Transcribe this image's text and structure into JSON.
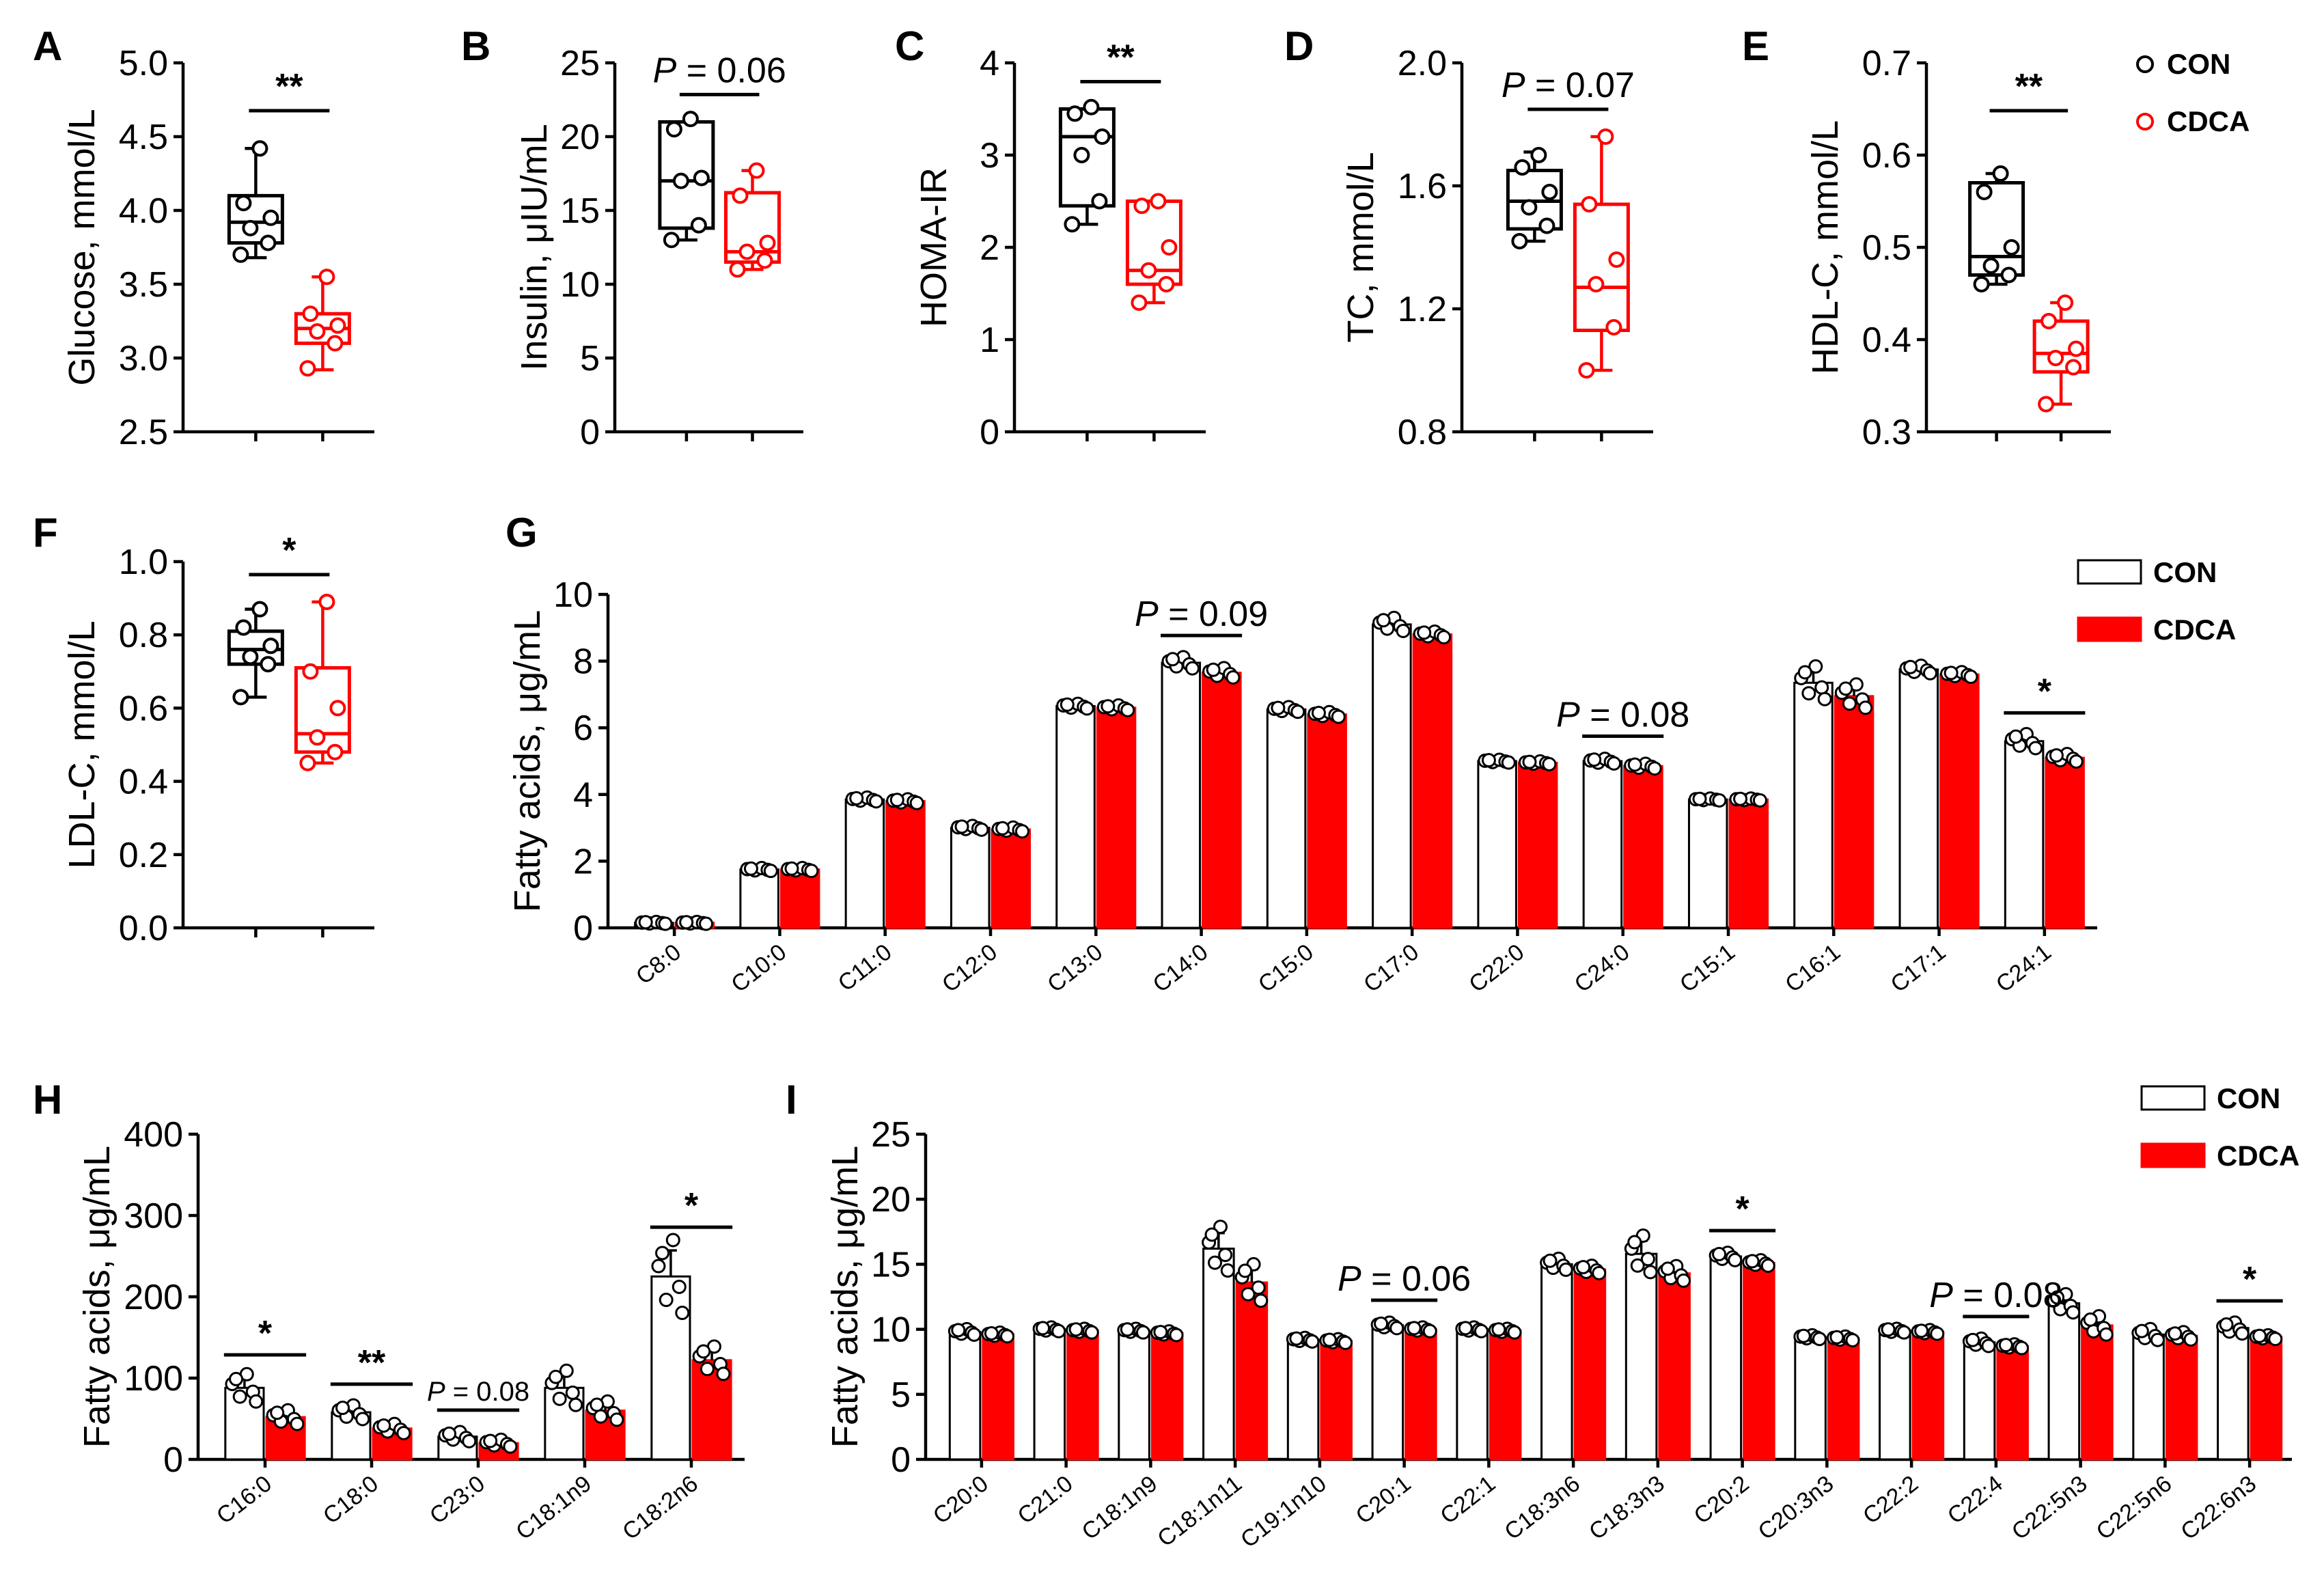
{
  "figure": {
    "colors": {
      "con": "#000000",
      "cdca": "#ff0000",
      "bar_con_fill": "#ffffff",
      "bar_cdca_fill": "#ff0000"
    },
    "box_legend": {
      "items": [
        {
          "label": "CON",
          "marker": "open-circle-black"
        },
        {
          "label": "CDCA",
          "marker": "open-circle-red"
        }
      ]
    }
  },
  "chart_data": [
    {
      "panel": "A",
      "type": "box",
      "ylabel": "Glucose, mmol/L",
      "ylim": [
        2.5,
        5.0
      ],
      "yticks": [
        "2.5",
        "3.0",
        "3.5",
        "4.0",
        "4.5",
        "5.0"
      ],
      "groups": [
        {
          "name": "CON",
          "min": 3.68,
          "q1": 3.78,
          "median": 3.92,
          "q3": 4.1,
          "max": 4.42,
          "points": [
            3.7,
            3.78,
            3.88,
            3.95,
            4.05,
            4.42
          ]
        },
        {
          "name": "CDCA",
          "min": 2.92,
          "q1": 3.1,
          "median": 3.2,
          "q3": 3.3,
          "max": 3.55,
          "points": [
            2.93,
            3.1,
            3.18,
            3.22,
            3.3,
            3.55
          ]
        }
      ],
      "significance": "**"
    },
    {
      "panel": "B",
      "type": "box",
      "ylabel": "Insulin, μIU/mL",
      "ylim": [
        0,
        25
      ],
      "yticks": [
        "0",
        "5",
        "10",
        "15",
        "20",
        "25"
      ],
      "groups": [
        {
          "name": "CON",
          "min": 13.0,
          "q1": 13.8,
          "median": 17.0,
          "q3": 21.0,
          "max": 21.0,
          "points": [
            13.0,
            14.0,
            17.0,
            17.2,
            20.5,
            21.2
          ]
        },
        {
          "name": "CDCA",
          "min": 11.0,
          "q1": 11.5,
          "median": 12.2,
          "q3": 16.2,
          "max": 17.7,
          "points": [
            11.0,
            11.6,
            12.2,
            12.8,
            16.0,
            17.7
          ]
        }
      ],
      "significance": "P = 0.06"
    },
    {
      "panel": "C",
      "type": "box",
      "ylabel": "HOMA-IR",
      "ylim": [
        0,
        4
      ],
      "yticks": [
        "0",
        "1",
        "2",
        "3",
        "4"
      ],
      "groups": [
        {
          "name": "CON",
          "min": 2.25,
          "q1": 2.45,
          "median": 3.2,
          "q3": 3.5,
          "max": 3.5,
          "points": [
            2.25,
            2.5,
            3.0,
            3.2,
            3.45,
            3.52
          ]
        },
        {
          "name": "CDCA",
          "min": 1.4,
          "q1": 1.6,
          "median": 1.75,
          "q3": 2.5,
          "max": 2.5,
          "points": [
            1.4,
            1.6,
            1.75,
            2.0,
            2.45,
            2.5
          ]
        }
      ],
      "significance": "**"
    },
    {
      "panel": "D",
      "type": "box",
      "ylabel": "TC, mmol/L",
      "ylim": [
        0.8,
        2.0
      ],
      "yticks": [
        "0.8",
        "1.2",
        "1.6",
        "2.0"
      ],
      "groups": [
        {
          "name": "CON",
          "min": 1.42,
          "q1": 1.46,
          "median": 1.55,
          "q3": 1.65,
          "max": 1.71,
          "points": [
            1.42,
            1.47,
            1.53,
            1.58,
            1.66,
            1.7
          ]
        },
        {
          "name": "CDCA",
          "min": 1.0,
          "q1": 1.13,
          "median": 1.27,
          "q3": 1.54,
          "max": 1.76,
          "points": [
            1.0,
            1.14,
            1.28,
            1.36,
            1.54,
            1.76
          ]
        }
      ],
      "significance": "P = 0.07"
    },
    {
      "panel": "E",
      "type": "box",
      "ylabel": "HDL-C, mmol/L",
      "ylim": [
        0.3,
        0.7
      ],
      "yticks": [
        "0.3",
        "0.4",
        "0.5",
        "0.6",
        "0.7"
      ],
      "groups": [
        {
          "name": "CON",
          "min": 0.46,
          "q1": 0.47,
          "median": 0.49,
          "q3": 0.57,
          "max": 0.58,
          "points": [
            0.46,
            0.47,
            0.48,
            0.5,
            0.56,
            0.58
          ]
        },
        {
          "name": "CDCA",
          "min": 0.33,
          "q1": 0.365,
          "median": 0.385,
          "q3": 0.42,
          "max": 0.44,
          "points": [
            0.33,
            0.37,
            0.38,
            0.39,
            0.42,
            0.44
          ]
        }
      ],
      "significance": "**"
    },
    {
      "panel": "F",
      "type": "box",
      "ylabel": "LDL-C, mmol/L",
      "ylim": [
        0.0,
        1.0
      ],
      "yticks": [
        "0.0",
        "0.2",
        "0.4",
        "0.6",
        "0.8",
        "1.0"
      ],
      "groups": [
        {
          "name": "CON",
          "min": 0.63,
          "q1": 0.72,
          "median": 0.76,
          "q3": 0.81,
          "max": 0.87,
          "points": [
            0.63,
            0.72,
            0.74,
            0.77,
            0.82,
            0.87
          ]
        },
        {
          "name": "CDCA",
          "min": 0.45,
          "q1": 0.48,
          "median": 0.53,
          "q3": 0.71,
          "max": 0.89,
          "points": [
            0.45,
            0.48,
            0.52,
            0.6,
            0.7,
            0.89
          ]
        }
      ],
      "significance": "*"
    },
    {
      "panel": "G",
      "type": "bar",
      "ylabel": "Fatty acids, μg/mL",
      "ylim": [
        0,
        10
      ],
      "yticks": [
        "0",
        "2",
        "4",
        "6",
        "8",
        "10"
      ],
      "legend": [
        "CON",
        "CDCA"
      ],
      "categories": [
        "C8:0",
        "C10:0",
        "C11:0",
        "C12:0",
        "C13:0",
        "C14:0",
        "C15:0",
        "C17:0",
        "C22:0",
        "C24:0",
        "C15:1",
        "C16:1",
        "C17:1",
        "C24:1"
      ],
      "series": [
        {
          "name": "CON",
          "values": [
            0.15,
            1.75,
            3.85,
            3.0,
            6.65,
            7.95,
            6.55,
            9.1,
            5.0,
            5.0,
            3.85,
            7.35,
            7.75,
            5.6
          ]
        },
        {
          "name": "CDCA",
          "values": [
            0.15,
            1.75,
            3.8,
            2.95,
            6.6,
            7.65,
            6.4,
            8.8,
            4.95,
            4.85,
            3.85,
            6.95,
            7.6,
            5.1
          ]
        }
      ],
      "errors": [
        [
          0.02,
          0.03,
          0.04,
          0.04,
          0.05,
          0.12,
          0.05,
          0.14,
          0.03,
          0.05,
          0.02,
          0.35,
          0.08,
          0.15
        ],
        [
          0.02,
          0.03,
          0.04,
          0.04,
          0.05,
          0.1,
          0.05,
          0.06,
          0.03,
          0.05,
          0.02,
          0.25,
          0.05,
          0.08
        ]
      ],
      "significance": [
        {
          "category": "C14:0",
          "label": "P = 0.09"
        },
        {
          "category": "C24:0",
          "label": "P = 0.08"
        },
        {
          "category": "C24:1",
          "label": "*"
        }
      ]
    },
    {
      "panel": "H",
      "type": "bar",
      "ylabel": "Fatty acids, μg/mL",
      "ylim": [
        0,
        400
      ],
      "yticks": [
        "0",
        "100",
        "200",
        "300",
        "400"
      ],
      "categories": [
        "C16:0",
        "C18:0",
        "C23:0",
        "C18:1n9",
        "C18:2n6"
      ],
      "series": [
        {
          "name": "CON",
          "values": [
            88,
            58,
            28,
            88,
            225
          ]
        },
        {
          "name": "CDCA",
          "values": [
            52,
            38,
            20,
            60,
            122
          ]
        }
      ],
      "errors": [
        [
          12,
          6,
          4,
          15,
          32
        ],
        [
          6,
          4,
          3,
          8,
          12
        ]
      ],
      "significance": [
        {
          "category": "C16:0",
          "label": "*"
        },
        {
          "category": "C18:0",
          "label": "**"
        },
        {
          "category": "C23:0",
          "label": "P = 0.08"
        },
        {
          "category": "C18:2n6",
          "label": "*"
        }
      ]
    },
    {
      "panel": "I",
      "type": "bar",
      "ylabel": "Fatty acids, μg/mL",
      "ylim": [
        0,
        25
      ],
      "yticks": [
        "0",
        "5",
        "10",
        "15",
        "20",
        "25"
      ],
      "legend": [
        "CON",
        "CDCA"
      ],
      "categories": [
        "C20:0",
        "C21:0",
        "C18:1n9",
        "C18:1n11",
        "C19:1n10",
        "C20:1",
        "C22:1",
        "C18:3n6",
        "C18:3n3",
        "C20:2",
        "C20:3n3",
        "C22:2",
        "C22:4",
        "C22:5n3",
        "C22:5n6",
        "C22:6n3"
      ],
      "series": [
        {
          "name": "CON",
          "values": [
            9.8,
            10.0,
            9.9,
            16.2,
            9.2,
            10.3,
            10.0,
            15.0,
            15.8,
            15.6,
            9.4,
            9.9,
            9.0,
            12.0,
            9.6,
            10.1
          ]
        },
        {
          "name": "CDCA",
          "values": [
            9.6,
            9.9,
            9.7,
            13.6,
            9.1,
            10.0,
            9.9,
            14.6,
            14.3,
            15.1,
            9.3,
            9.8,
            8.7,
            10.3,
            9.5,
            9.4
          ]
        }
      ],
      "errors": [
        [
          0.15,
          0.1,
          0.1,
          1.2,
          0.1,
          0.15,
          0.1,
          0.3,
          1.0,
          0.2,
          0.1,
          0.1,
          0.2,
          0.5,
          0.3,
          0.3
        ],
        [
          0.1,
          0.1,
          0.1,
          1.0,
          0.1,
          0.1,
          0.1,
          0.2,
          0.4,
          0.15,
          0.1,
          0.1,
          0.1,
          0.5,
          0.2,
          0.1
        ]
      ],
      "significance": [
        {
          "category": "C20:1",
          "label": "P = 0.06"
        },
        {
          "category": "C20:2",
          "label": "*"
        },
        {
          "category": "C22:4",
          "label": "P = 0.08"
        },
        {
          "category": "C22:6n3",
          "label": "*"
        }
      ]
    }
  ]
}
